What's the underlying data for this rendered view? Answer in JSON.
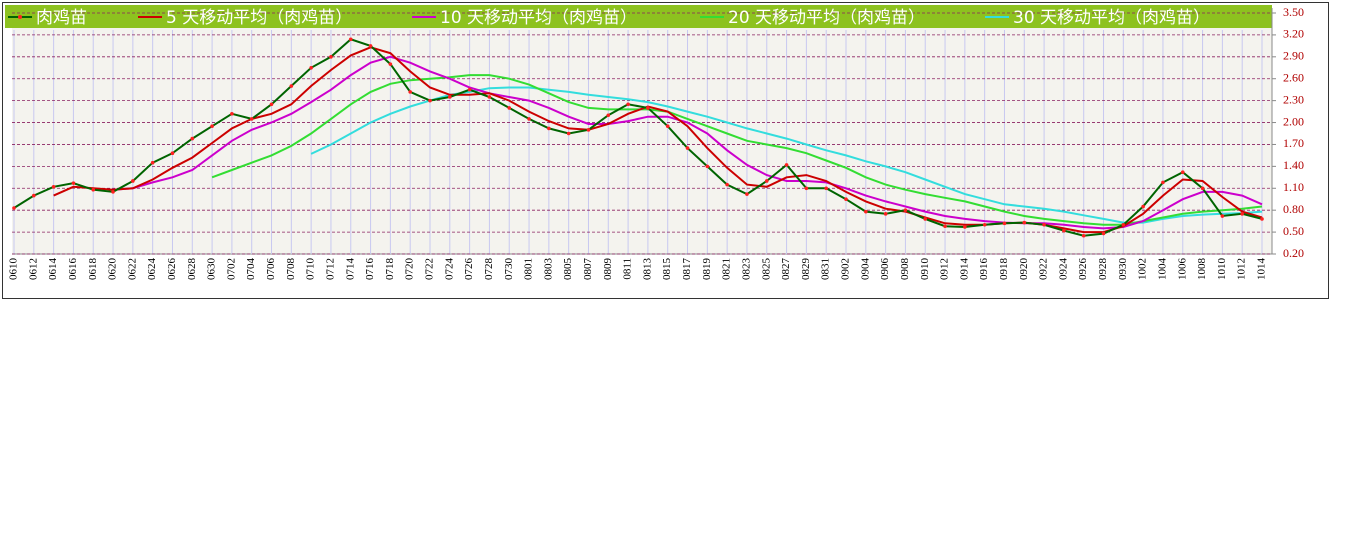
{
  "chart_data": {
    "type": "line",
    "categories": [
      "0610",
      "0612",
      "0614",
      "0616",
      "0618",
      "0620",
      "0622",
      "0624",
      "0626",
      "0628",
      "0630",
      "0702",
      "0704",
      "0706",
      "0708",
      "0710",
      "0712",
      "0714",
      "0716",
      "0718",
      "0720",
      "0722",
      "0724",
      "0726",
      "0728",
      "0730",
      "0801",
      "0803",
      "0805",
      "0807",
      "0809",
      "0811",
      "0813",
      "0815",
      "0817",
      "0819",
      "0821",
      "0823",
      "0825",
      "0827",
      "0829",
      "0831",
      "0902",
      "0904",
      "0906",
      "0908",
      "0910",
      "0912",
      "0914",
      "0916",
      "0918",
      "0920",
      "0922",
      "0924",
      "0926",
      "0928",
      "0930",
      "1002",
      "1004",
      "1006",
      "1008",
      "1010",
      "1012",
      "1014"
    ],
    "series": [
      {
        "name": "肉鸡苗",
        "color": "#006400",
        "marker_color": "#ff2020",
        "values": [
          0.83,
          1.0,
          1.12,
          1.17,
          1.08,
          1.05,
          1.2,
          1.45,
          1.58,
          1.78,
          1.95,
          2.12,
          2.05,
          2.25,
          2.5,
          2.75,
          2.9,
          3.14,
          3.05,
          2.8,
          2.42,
          2.3,
          2.35,
          2.45,
          2.35,
          2.2,
          2.05,
          1.92,
          1.85,
          1.9,
          2.1,
          2.25,
          2.2,
          1.95,
          1.65,
          1.4,
          1.15,
          1.02,
          1.2,
          1.42,
          1.1,
          1.1,
          0.95,
          0.78,
          0.75,
          0.8,
          0.68,
          0.58,
          0.57,
          0.6,
          0.62,
          0.63,
          0.6,
          0.52,
          0.45,
          0.48,
          0.6,
          0.85,
          1.18,
          1.32,
          1.1,
          0.72,
          0.75,
          0.68
        ]
      },
      {
        "name": "5 天移动平均（肉鸡苗）",
        "color": "#cc0000",
        "values": [
          null,
          null,
          1.0,
          1.12,
          1.1,
          1.08,
          1.1,
          1.22,
          1.38,
          1.52,
          1.72,
          1.92,
          2.05,
          2.12,
          2.25,
          2.5,
          2.72,
          2.92,
          3.03,
          2.95,
          2.7,
          2.48,
          2.38,
          2.38,
          2.4,
          2.3,
          2.15,
          2.02,
          1.92,
          1.9,
          1.98,
          2.12,
          2.22,
          2.15,
          1.95,
          1.65,
          1.38,
          1.15,
          1.12,
          1.25,
          1.28,
          1.2,
          1.05,
          0.92,
          0.82,
          0.78,
          0.7,
          0.62,
          0.6,
          0.6,
          0.62,
          0.63,
          0.6,
          0.55,
          0.5,
          0.5,
          0.58,
          0.75,
          1.0,
          1.22,
          1.2,
          0.98,
          0.78,
          0.7
        ]
      },
      {
        "name": "10 天移动平均（肉鸡苗）",
        "color": "#cc00cc",
        "values": [
          null,
          null,
          null,
          null,
          null,
          1.08,
          1.1,
          1.18,
          1.25,
          1.35,
          1.55,
          1.75,
          1.9,
          2.0,
          2.12,
          2.28,
          2.45,
          2.65,
          2.82,
          2.9,
          2.82,
          2.7,
          2.6,
          2.48,
          2.4,
          2.35,
          2.3,
          2.2,
          2.08,
          1.98,
          1.98,
          2.02,
          2.08,
          2.08,
          2.0,
          1.85,
          1.62,
          1.42,
          1.28,
          1.2,
          1.2,
          1.18,
          1.1,
          1.0,
          0.92,
          0.85,
          0.78,
          0.72,
          0.68,
          0.65,
          0.63,
          0.62,
          0.62,
          0.6,
          0.57,
          0.55,
          0.57,
          0.65,
          0.8,
          0.95,
          1.05,
          1.05,
          1.0,
          0.88
        ]
      },
      {
        "name": "20 天移动平均（肉鸡苗）",
        "color": "#33dd33",
        "values": [
          null,
          null,
          null,
          null,
          null,
          null,
          null,
          null,
          null,
          null,
          1.25,
          1.35,
          1.45,
          1.55,
          1.68,
          1.85,
          2.05,
          2.25,
          2.42,
          2.53,
          2.58,
          2.6,
          2.62,
          2.65,
          2.65,
          2.6,
          2.52,
          2.4,
          2.28,
          2.2,
          2.18,
          2.18,
          2.18,
          2.15,
          2.05,
          1.95,
          1.85,
          1.75,
          1.7,
          1.65,
          1.58,
          1.48,
          1.38,
          1.25,
          1.15,
          1.08,
          1.02,
          0.97,
          0.92,
          0.85,
          0.78,
          0.72,
          0.68,
          0.65,
          0.62,
          0.6,
          0.6,
          0.65,
          0.7,
          0.75,
          0.78,
          0.8,
          0.82,
          0.85
        ]
      },
      {
        "name": "30 天移动平均（肉鸡苗）",
        "color": "#33dddd",
        "values": [
          null,
          null,
          null,
          null,
          null,
          null,
          null,
          null,
          null,
          null,
          null,
          null,
          null,
          null,
          null,
          1.57,
          1.7,
          1.85,
          2.0,
          2.12,
          2.22,
          2.3,
          2.38,
          2.42,
          2.47,
          2.48,
          2.48,
          2.45,
          2.42,
          2.38,
          2.35,
          2.32,
          2.28,
          2.22,
          2.15,
          2.08,
          2.0,
          1.92,
          1.85,
          1.78,
          1.7,
          1.62,
          1.55,
          1.47,
          1.4,
          1.32,
          1.22,
          1.12,
          1.02,
          0.95,
          0.88,
          0.85,
          0.82,
          0.78,
          0.73,
          0.68,
          0.63,
          0.63,
          0.68,
          0.72,
          0.74,
          0.75,
          0.76,
          0.78
        ]
      }
    ],
    "ylim": [
      0.2,
      3.5
    ],
    "yticks": [
      {
        "value": 0.2,
        "label": "0.20"
      },
      {
        "value": 0.5,
        "label": "0.50"
      },
      {
        "value": 0.8,
        "label": "0.80"
      },
      {
        "value": 1.1,
        "label": "1.10"
      },
      {
        "value": 1.4,
        "label": "1.40"
      },
      {
        "value": 1.7,
        "label": "1.70"
      },
      {
        "value": 2.0,
        "label": "2.00"
      },
      {
        "value": 2.3,
        "label": "2.30"
      },
      {
        "value": 2.6,
        "label": "2.60"
      },
      {
        "value": 2.9,
        "label": "2.90"
      },
      {
        "value": 3.2,
        "label": "3.20"
      },
      {
        "value": 3.5,
        "label": "3.50"
      }
    ],
    "grid": true,
    "legend": "top"
  }
}
